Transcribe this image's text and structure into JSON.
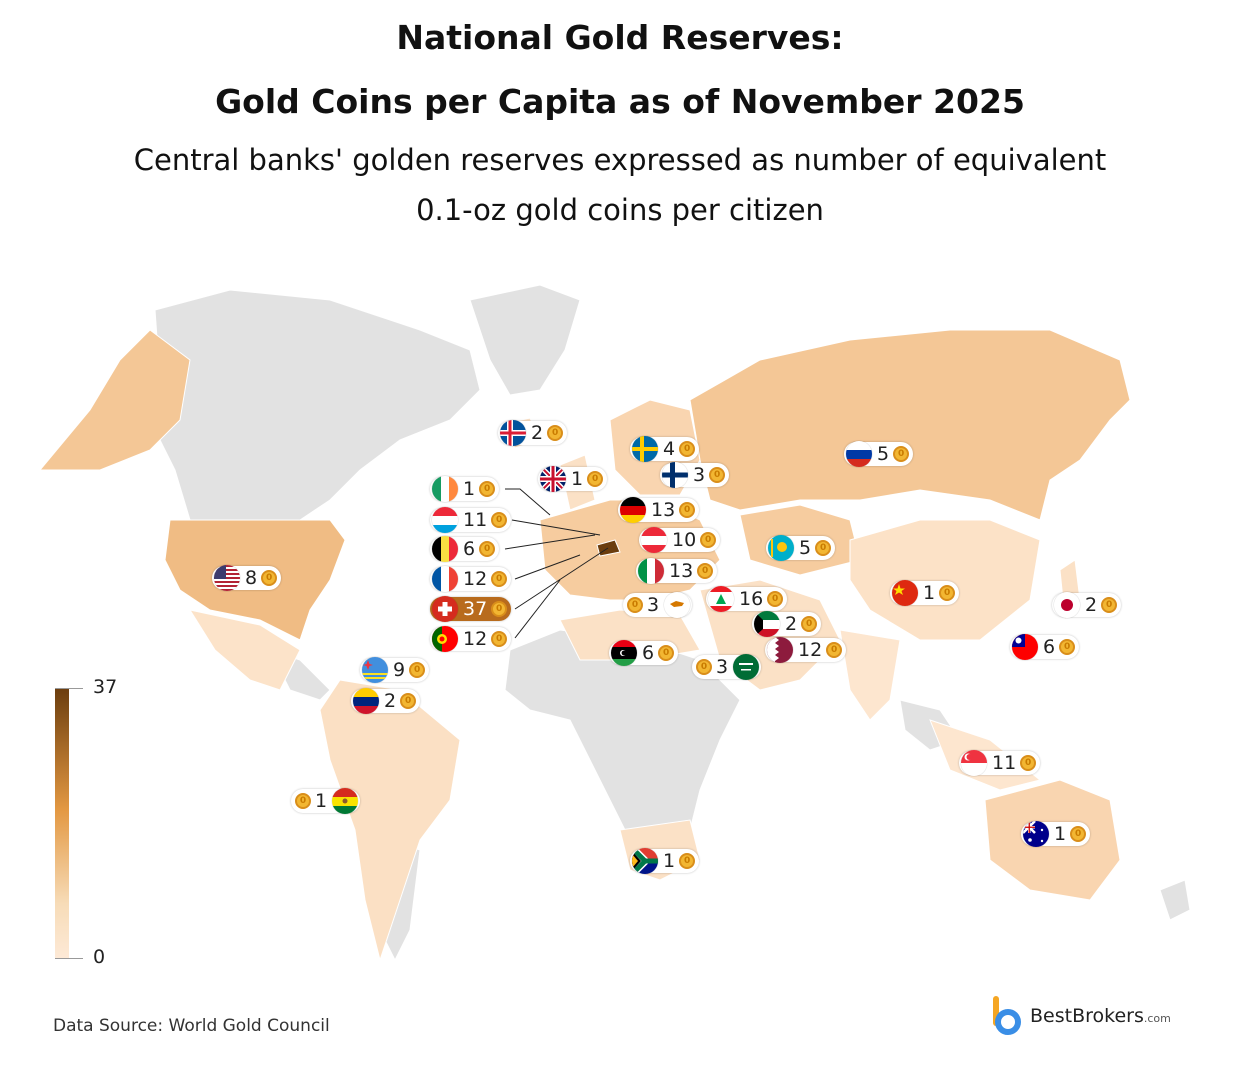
{
  "title_line1": "National Gold Reserves:",
  "title_line2": "Gold Coins per Capita as of November 2025",
  "subtitle_line1": "Central banks' golden reserves expressed as number of equivalent",
  "subtitle_line2": "0.1-oz gold coins per citizen",
  "legend": {
    "max": "37",
    "min": "0"
  },
  "source": "Data Source: World Gold Council",
  "brand": {
    "name": "BestBrokers",
    "suffix": ".com"
  },
  "colors": {
    "scale_max": "#6b3d0e",
    "scale_mid": "#e39842",
    "scale_low": "#fde9d6",
    "no_data": "#e0e0e0",
    "highlight": "#b86b1d"
  },
  "countries": [
    {
      "id": "iceland",
      "value": "2"
    },
    {
      "id": "sweden",
      "value": "4"
    },
    {
      "id": "uk",
      "value": "1"
    },
    {
      "id": "finland",
      "value": "3"
    },
    {
      "id": "russia",
      "value": "5"
    },
    {
      "id": "ireland",
      "value": "1"
    },
    {
      "id": "germany",
      "value": "13"
    },
    {
      "id": "luxembourg",
      "value": "11"
    },
    {
      "id": "austria",
      "value": "10"
    },
    {
      "id": "belgium",
      "value": "6"
    },
    {
      "id": "kazakhstan",
      "value": "5"
    },
    {
      "id": "usa",
      "value": "8"
    },
    {
      "id": "france",
      "value": "12"
    },
    {
      "id": "italy",
      "value": "13"
    },
    {
      "id": "china",
      "value": "1"
    },
    {
      "id": "switzerland",
      "value": "37"
    },
    {
      "id": "cyprus",
      "value": "3"
    },
    {
      "id": "lebanon",
      "value": "16"
    },
    {
      "id": "japan",
      "value": "2"
    },
    {
      "id": "portugal",
      "value": "12"
    },
    {
      "id": "kuwait",
      "value": "2"
    },
    {
      "id": "taiwan",
      "value": "6"
    },
    {
      "id": "libya",
      "value": "6"
    },
    {
      "id": "qatar",
      "value": "12"
    },
    {
      "id": "aruba",
      "value": "9"
    },
    {
      "id": "saudi-arabia",
      "value": "3"
    },
    {
      "id": "venezuela",
      "value": "2"
    },
    {
      "id": "singapore",
      "value": "11"
    },
    {
      "id": "bolivia",
      "value": "1"
    },
    {
      "id": "australia",
      "value": "1"
    },
    {
      "id": "south-africa",
      "value": "1"
    }
  ]
}
